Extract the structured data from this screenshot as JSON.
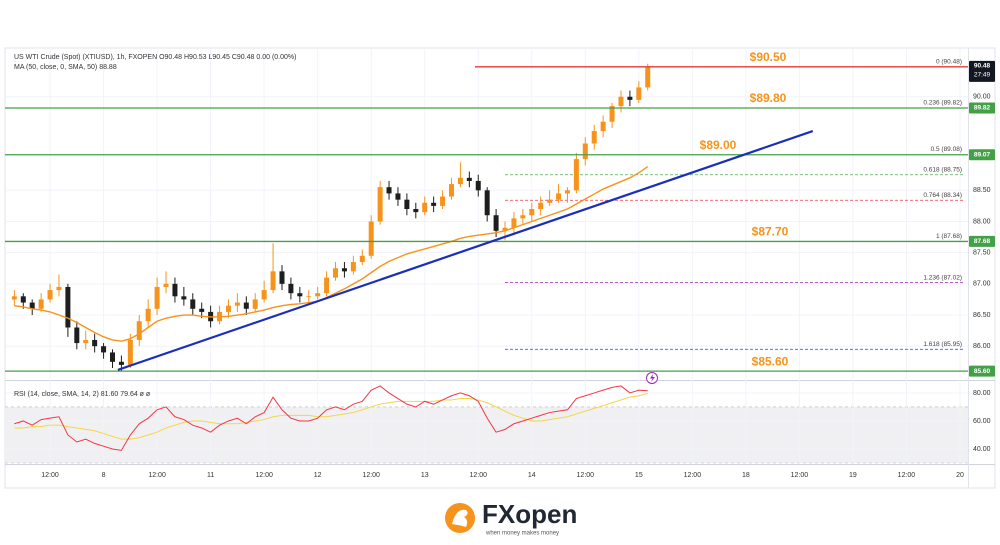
{
  "chart_data": {
    "type": "candlestick",
    "title": "US WTI Crude (Spot) (XTIUSD), 1h, FXOPEN  O90.48  H90.53  L90.45  C90.48  0.00 (0.00%)",
    "ma_label": "MA (50, close, 0, SMA, 50)  88.88",
    "rsi_label": "RSI (14, close, SMA, 14, 2)  81.60  79.64  ø  ø",
    "x": [
      4,
      6,
      8,
      10,
      12,
      14,
      16,
      18,
      20,
      22,
      24,
      26,
      28,
      30,
      32,
      34,
      36,
      38,
      40,
      42,
      44,
      46,
      48,
      50,
      52,
      54,
      56,
      58,
      60,
      62,
      64,
      66,
      68,
      70,
      72,
      74,
      76,
      78,
      80,
      82,
      84,
      86,
      88,
      90,
      92,
      94,
      96,
      98,
      100,
      102,
      104,
      106,
      108,
      110,
      112,
      114,
      116,
      118,
      120,
      122,
      124,
      126,
      128,
      130,
      132,
      134,
      136,
      138,
      140,
      142,
      144,
      146
    ],
    "ohlc": [
      [
        86.75,
        86.9,
        86.65,
        86.8
      ],
      [
        86.8,
        86.85,
        86.6,
        86.7
      ],
      [
        86.7,
        86.75,
        86.5,
        86.6
      ],
      [
        86.6,
        86.85,
        86.55,
        86.75
      ],
      [
        86.75,
        87,
        86.7,
        86.9
      ],
      [
        86.9,
        87.15,
        86.8,
        86.95
      ],
      [
        86.95,
        87,
        86.15,
        86.3
      ],
      [
        86.3,
        86.4,
        85.95,
        86.05
      ],
      [
        86.05,
        86.25,
        85.95,
        86.1
      ],
      [
        86.1,
        86.2,
        85.9,
        86
      ],
      [
        86,
        86.05,
        85.8,
        85.9
      ],
      [
        85.9,
        85.95,
        85.65,
        85.75
      ],
      [
        85.75,
        85.85,
        85.6,
        85.7
      ],
      [
        85.7,
        86.2,
        85.65,
        86.1
      ],
      [
        86.1,
        86.5,
        86,
        86.4
      ],
      [
        86.4,
        86.75,
        86.3,
        86.6
      ],
      [
        86.6,
        87.1,
        86.5,
        86.95
      ],
      [
        86.95,
        87.2,
        86.85,
        87
      ],
      [
        87,
        87.1,
        86.7,
        86.8
      ],
      [
        86.8,
        86.95,
        86.65,
        86.75
      ],
      [
        86.75,
        86.85,
        86.5,
        86.6
      ],
      [
        86.6,
        86.7,
        86.45,
        86.55
      ],
      [
        86.55,
        86.65,
        86.3,
        86.4
      ],
      [
        86.4,
        86.65,
        86.35,
        86.55
      ],
      [
        86.55,
        86.75,
        86.45,
        86.65
      ],
      [
        86.65,
        86.85,
        86.55,
        86.7
      ],
      [
        86.7,
        86.8,
        86.5,
        86.6
      ],
      [
        86.6,
        86.85,
        86.55,
        86.75
      ],
      [
        86.75,
        87.05,
        86.7,
        86.9
      ],
      [
        86.9,
        87.65,
        86.85,
        87.2
      ],
      [
        87.2,
        87.3,
        86.9,
        87
      ],
      [
        87,
        87.1,
        86.75,
        86.85
      ],
      [
        86.85,
        86.95,
        86.7,
        86.8
      ],
      [
        86.8,
        86.9,
        86.7,
        86.8
      ],
      [
        86.8,
        86.95,
        86.75,
        86.85
      ],
      [
        86.85,
        87.2,
        86.8,
        87.1
      ],
      [
        87.1,
        87.35,
        87.05,
        87.25
      ],
      [
        87.25,
        87.35,
        87.1,
        87.2
      ],
      [
        87.2,
        87.45,
        87.15,
        87.35
      ],
      [
        87.35,
        87.55,
        87.3,
        87.45
      ],
      [
        87.45,
        88.1,
        87.4,
        88
      ],
      [
        88,
        88.65,
        87.95,
        88.55
      ],
      [
        88.55,
        88.65,
        88.35,
        88.45
      ],
      [
        88.45,
        88.55,
        88.25,
        88.35
      ],
      [
        88.35,
        88.45,
        88.1,
        88.2
      ],
      [
        88.2,
        88.3,
        88.05,
        88.15
      ],
      [
        88.15,
        88.4,
        88.1,
        88.3
      ],
      [
        88.3,
        88.4,
        88.15,
        88.25
      ],
      [
        88.25,
        88.5,
        88.2,
        88.4
      ],
      [
        88.4,
        88.7,
        88.35,
        88.6
      ],
      [
        88.6,
        88.95,
        88.55,
        88.7
      ],
      [
        88.7,
        88.8,
        88.55,
        88.65
      ],
      [
        88.65,
        88.75,
        88.4,
        88.5
      ],
      [
        88.5,
        88.55,
        88,
        88.1
      ],
      [
        88.1,
        88.2,
        87.75,
        87.85
      ],
      [
        87.85,
        88,
        87.7,
        87.9
      ],
      [
        87.9,
        88.15,
        87.8,
        88.05
      ],
      [
        88.05,
        88.2,
        87.95,
        88.1
      ],
      [
        88.1,
        88.3,
        88,
        88.2
      ],
      [
        88.2,
        88.4,
        88.1,
        88.3
      ],
      [
        88.3,
        88.5,
        88.25,
        88.35
      ],
      [
        88.35,
        88.6,
        88.3,
        88.45
      ],
      [
        88.45,
        88.55,
        88.3,
        88.5
      ],
      [
        88.5,
        89.1,
        88.45,
        89
      ],
      [
        89,
        89.35,
        88.9,
        89.25
      ],
      [
        89.25,
        89.55,
        89.15,
        89.45
      ],
      [
        89.45,
        89.7,
        89.35,
        89.6
      ],
      [
        89.6,
        89.9,
        89.5,
        89.85
      ],
      [
        89.85,
        90.1,
        89.75,
        90
      ],
      [
        90,
        90.1,
        89.85,
        89.95
      ],
      [
        89.95,
        90.25,
        89.9,
        90.15
      ],
      [
        90.15,
        90.53,
        90.1,
        90.48
      ]
    ],
    "up_color": "#f7931a",
    "down_color": "#1e1e1e",
    "ma": {
      "color": "#f7931a",
      "values": [
        86.65,
        86.63,
        86.6,
        86.58,
        86.55,
        86.5,
        86.45,
        86.38,
        86.3,
        86.22,
        86.15,
        86.1,
        86.08,
        86.12,
        86.2,
        86.3,
        86.4,
        86.45,
        86.48,
        86.5,
        86.5,
        86.48,
        86.47,
        86.47,
        86.48,
        86.5,
        86.52,
        86.55,
        86.58,
        86.62,
        86.65,
        86.67,
        86.68,
        86.7,
        86.72,
        86.78,
        86.85,
        86.92,
        87,
        87.08,
        87.18,
        87.28,
        87.36,
        87.42,
        87.48,
        87.52,
        87.56,
        87.6,
        87.64,
        87.68,
        87.73,
        87.76,
        87.78,
        87.8,
        87.82,
        87.85,
        87.9,
        87.95,
        88,
        88.05,
        88.1,
        88.15,
        88.2,
        88.28,
        88.36,
        88.44,
        88.52,
        88.58,
        88.64,
        88.7,
        88.78,
        88.88
      ]
    },
    "rsi": {
      "color": "#f23645",
      "ma_color": "#f5d547",
      "values": [
        58,
        60,
        57,
        61,
        62,
        63,
        50,
        45,
        47,
        44,
        42,
        40,
        39,
        50,
        58,
        62,
        68,
        70,
        63,
        61,
        57,
        55,
        52,
        57,
        60,
        62,
        58,
        63,
        66,
        77,
        68,
        62,
        60,
        60,
        62,
        68,
        70,
        68,
        72,
        74,
        82,
        85,
        80,
        76,
        72,
        70,
        74,
        72,
        75,
        78,
        80,
        78,
        74,
        62,
        52,
        54,
        58,
        60,
        62,
        64,
        66,
        67,
        68,
        76,
        78,
        80,
        82,
        84,
        85,
        80,
        82,
        81.6
      ],
      "ma_values": [
        55,
        55,
        56,
        56,
        57,
        57,
        56,
        55,
        54,
        53,
        51,
        49,
        47,
        47,
        48,
        50,
        52,
        55,
        57,
        59,
        60,
        60,
        59,
        58,
        58,
        58,
        59,
        60,
        61,
        63,
        64,
        64,
        64,
        64,
        63,
        63,
        64,
        65,
        66,
        68,
        70,
        72,
        73,
        74,
        74,
        74,
        74,
        74,
        75,
        75,
        76,
        76,
        75,
        73,
        70,
        67,
        64,
        62,
        60,
        60,
        61,
        62,
        63,
        65,
        67,
        69,
        71,
        73,
        75,
        77,
        78,
        79.64
      ],
      "ylim": [
        30,
        87.1
      ],
      "band": [
        30,
        70
      ],
      "yticks": [
        {
          "value": 80,
          "label": "80.00"
        },
        {
          "value": 60,
          "label": "60.00"
        },
        {
          "value": 40,
          "label": "40.00"
        }
      ]
    },
    "xlim": [
      1.9,
      217.8
    ],
    "xticks": [
      {
        "value": 12,
        "label": "12:00"
      },
      {
        "value": 24,
        "label": "8"
      },
      {
        "value": 36,
        "label": "12:00"
      },
      {
        "value": 48,
        "label": "11"
      },
      {
        "value": 60,
        "label": "12:00"
      },
      {
        "value": 72,
        "label": "12"
      },
      {
        "value": 84,
        "label": "12:00"
      },
      {
        "value": 96,
        "label": "13"
      },
      {
        "value": 108,
        "label": "12:00"
      },
      {
        "value": 120,
        "label": "14"
      },
      {
        "value": 132,
        "label": "12:00"
      },
      {
        "value": 144,
        "label": "15"
      },
      {
        "value": 156,
        "label": "12:00"
      },
      {
        "value": 168,
        "label": "18"
      },
      {
        "value": 180,
        "label": "12:00"
      },
      {
        "value": 192,
        "label": "19"
      },
      {
        "value": 204,
        "label": "12:00"
      },
      {
        "value": 216,
        "label": "20"
      }
    ],
    "ylim": [
      85.49,
      90.75
    ],
    "yticks": [
      {
        "value": 90,
        "label": "90.00"
      },
      {
        "value": 88.5,
        "label": "88.50"
      },
      {
        "value": 88,
        "label": "88.00"
      },
      {
        "value": 87.5,
        "label": "87.50"
      },
      {
        "value": 87,
        "label": "87.00"
      },
      {
        "value": 86.5,
        "label": "86.50"
      },
      {
        "value": 86,
        "label": "86.00"
      }
    ],
    "grid": true,
    "levels": [
      {
        "value": 90.48,
        "label": "$90.50",
        "tag": "90.48",
        "color": "#e53935"
      },
      {
        "value": 89.82,
        "label": "$89.80",
        "tag": "89.82",
        "color": "#43a047"
      },
      {
        "value": 89.07,
        "label": "$89.00",
        "tag": "89.07",
        "color": "#43a047"
      },
      {
        "value": 87.68,
        "label": "$87.70",
        "tag": "87.68",
        "color": "#43a047"
      },
      {
        "value": 85.6,
        "label": "$85.60",
        "tag": "85.60",
        "color": "#43a047"
      }
    ],
    "fib": [
      {
        "value": 90.48,
        "label": "0 (90.48)"
      },
      {
        "value": 89.82,
        "label": "0.236 (89.82)"
      },
      {
        "value": 89.08,
        "label": "0.5 (89.08)"
      },
      {
        "value": 88.75,
        "label": "0.618 (88.75)",
        "color": "#4caf50"
      },
      {
        "value": 88.34,
        "label": "0.764 (88.34)",
        "color": "#f23645"
      },
      {
        "value": 87.68,
        "label": "1 (87.68)"
      },
      {
        "value": 87.02,
        "label": "1.236 (87.02)",
        "color": "#9c27b0"
      },
      {
        "value": 85.95,
        "label": "1.618 (85.95)",
        "color": "#2962ff"
      }
    ],
    "trendline": {
      "color": "#1a2fb8",
      "x": [
        27.2,
        183
      ],
      "y": [
        85.62,
        89.45
      ]
    },
    "price_tag": "90.48",
    "countdown": "27:49"
  },
  "logo": {
    "name": "FXopen",
    "tagline": "when money makes money"
  }
}
